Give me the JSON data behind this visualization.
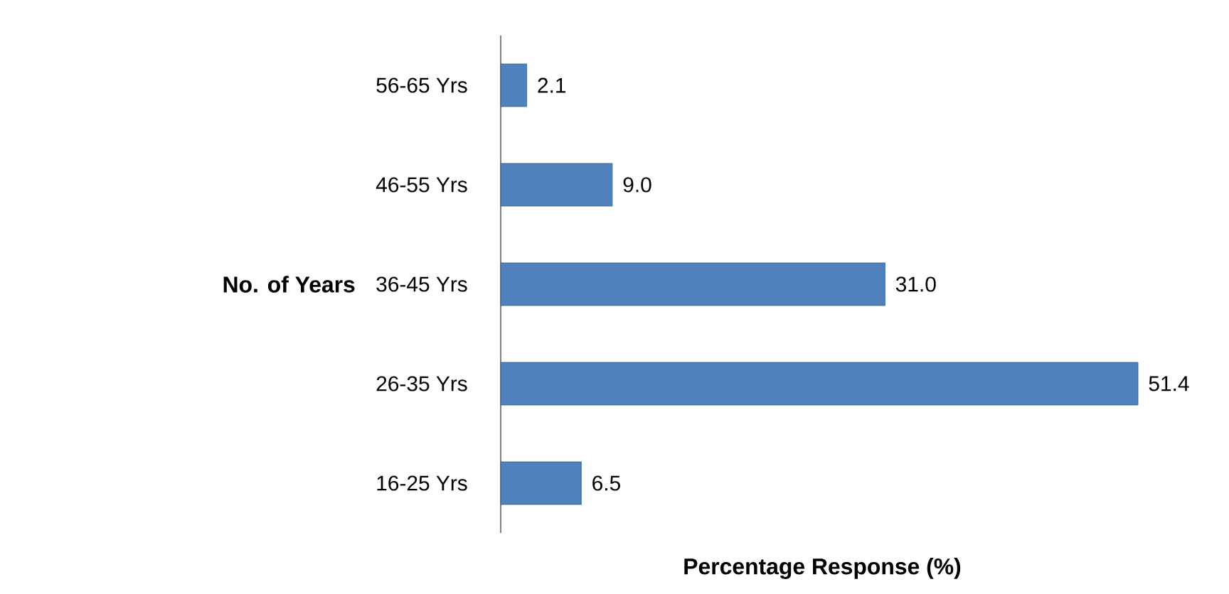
{
  "chart_data": {
    "type": "bar",
    "orientation": "horizontal",
    "xlabel": "Percentage Response (%)",
    "ylabel": "No. of Years",
    "categories": [
      "56-65 Yrs",
      "46-55 Yrs",
      "36-45 Yrs",
      "26-35 Yrs",
      "16-25 Yrs"
    ],
    "values": [
      2.1,
      9.0,
      31.0,
      51.4,
      6.5
    ],
    "value_labels": [
      "2.1",
      "9.0",
      "31.0",
      "51.4",
      "6.5"
    ],
    "color": "#4f81bd"
  }
}
